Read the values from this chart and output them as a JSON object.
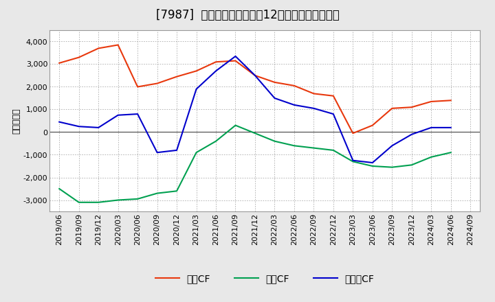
{
  "title": "[7987]  キャッシュフローの12か月移動合計の推移",
  "ylabel": "（百万円）",
  "x_labels": [
    "2019/06",
    "2019/09",
    "2019/12",
    "2020/03",
    "2020/06",
    "2020/09",
    "2020/12",
    "2021/03",
    "2021/06",
    "2021/09",
    "2021/12",
    "2022/03",
    "2022/06",
    "2022/09",
    "2022/12",
    "2023/03",
    "2023/06",
    "2023/09",
    "2023/12",
    "2024/03",
    "2024/06",
    "2024/09"
  ],
  "operating_cf": [
    3050,
    3300,
    3700,
    3850,
    2000,
    2150,
    2450,
    2700,
    3100,
    3150,
    2500,
    2200,
    2050,
    1700,
    1600,
    -50,
    300,
    1050,
    1100,
    1350,
    1400,
    null
  ],
  "investing_cf": [
    -2500,
    -3100,
    -3100,
    -3000,
    -2950,
    -2700,
    -2600,
    -900,
    -400,
    300,
    -50,
    -400,
    -600,
    -700,
    -800,
    -1300,
    -1500,
    -1550,
    -1450,
    -1100,
    -900,
    null
  ],
  "free_cf": [
    450,
    250,
    200,
    750,
    800,
    -900,
    -800,
    1900,
    2700,
    3350,
    2500,
    1500,
    1200,
    1050,
    800,
    -1250,
    -1350,
    -600,
    -100,
    200,
    200,
    null
  ],
  "ylim": [
    -3500,
    4500
  ],
  "yticks": [
    -3000,
    -2000,
    -1000,
    0,
    1000,
    2000,
    3000,
    4000
  ],
  "operating_color": "#e8380d",
  "investing_color": "#00a050",
  "free_color": "#0000cc",
  "legend_labels": [
    "営業CF",
    "投資CF",
    "フリーCF"
  ],
  "bg_color": "#e8e8e8",
  "plot_bg_color": "#ffffff",
  "grid_color": "#aaaaaa",
  "title_fontsize": 12,
  "label_fontsize": 9,
  "tick_fontsize": 8
}
